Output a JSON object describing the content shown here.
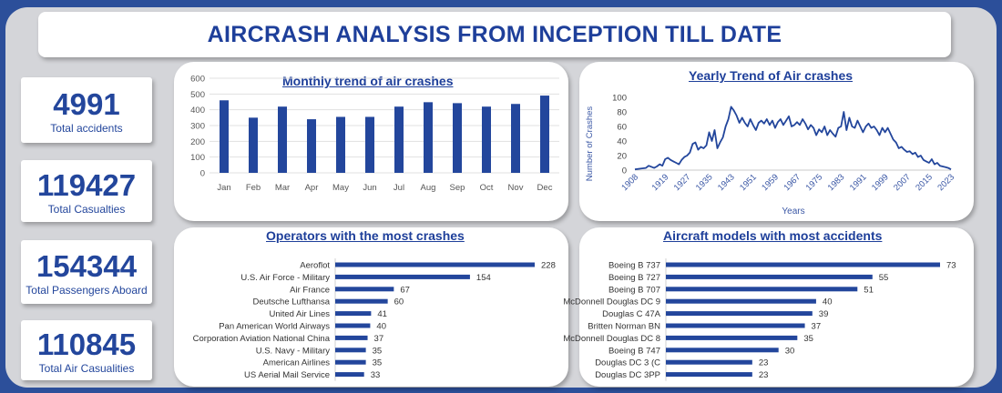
{
  "title": "AIRCRASH ANALYSIS FROM INCEPTION TILL DATE",
  "kpis": [
    {
      "value": "4991",
      "label": "Total accidents"
    },
    {
      "value": "119427",
      "label": "Total Casualties"
    },
    {
      "value": "154344",
      "label": "Total Passengers Aboard"
    },
    {
      "value": "110845",
      "label": "Total Air Casualities"
    }
  ],
  "colors": {
    "bar": "#23469c",
    "line": "#23469c",
    "grid": "#e1e1e1",
    "axis_text": "#3a57a5"
  },
  "chart_data": [
    {
      "id": "monthly",
      "type": "bar",
      "title": "Monthly trend of air crashes",
      "categories": [
        "Jan",
        "Feb",
        "Mar",
        "Apr",
        "May",
        "Jun",
        "Jul",
        "Aug",
        "Sep",
        "Oct",
        "Nov",
        "Dec"
      ],
      "values": [
        460,
        350,
        420,
        340,
        355,
        355,
        420,
        448,
        442,
        420,
        437,
        490
      ],
      "ylim": [
        0,
        600
      ],
      "yticks": [
        0,
        100,
        200,
        300,
        400,
        500,
        600
      ],
      "xlabel": "",
      "ylabel": "",
      "grid": true
    },
    {
      "id": "yearly",
      "type": "line",
      "title": "Yearly Trend of Air crashes",
      "xlabel": "Years",
      "ylabel": "Number of Crashes",
      "ylim": [
        0,
        100
      ],
      "yticks": [
        0,
        20,
        40,
        60,
        80,
        100
      ],
      "xlim": [
        1908,
        2023
      ],
      "xticks": [
        1908,
        1919,
        1927,
        1935,
        1943,
        1951,
        1959,
        1967,
        1975,
        1983,
        1991,
        1999,
        2007,
        2015,
        2023
      ],
      "x": [
        1908,
        1910,
        1912,
        1913,
        1915,
        1916,
        1917,
        1918,
        1919,
        1920,
        1921,
        1922,
        1923,
        1924,
        1925,
        1926,
        1927,
        1928,
        1929,
        1930,
        1931,
        1932,
        1933,
        1934,
        1935,
        1936,
        1937,
        1938,
        1939,
        1940,
        1941,
        1942,
        1943,
        1944,
        1945,
        1946,
        1947,
        1948,
        1949,
        1950,
        1951,
        1952,
        1953,
        1954,
        1955,
        1956,
        1957,
        1958,
        1959,
        1960,
        1961,
        1962,
        1963,
        1964,
        1965,
        1966,
        1967,
        1968,
        1969,
        1970,
        1971,
        1972,
        1973,
        1974,
        1975,
        1976,
        1977,
        1978,
        1979,
        1980,
        1981,
        1982,
        1983,
        1984,
        1985,
        1986,
        1987,
        1988,
        1989,
        1990,
        1991,
        1992,
        1993,
        1994,
        1995,
        1996,
        1997,
        1998,
        1999,
        2000,
        2001,
        2002,
        2003,
        2004,
        2005,
        2006,
        2007,
        2008,
        2009,
        2010,
        2011,
        2012,
        2013,
        2014,
        2015,
        2016,
        2017,
        2018,
        2019,
        2020,
        2021,
        2022,
        2023
      ],
      "y": [
        1,
        2,
        3,
        6,
        3,
        5,
        8,
        6,
        15,
        17,
        14,
        12,
        10,
        8,
        14,
        18,
        20,
        24,
        36,
        38,
        28,
        32,
        30,
        34,
        52,
        40,
        55,
        30,
        38,
        45,
        60,
        70,
        87,
        82,
        75,
        65,
        72,
        65,
        60,
        70,
        62,
        55,
        65,
        68,
        64,
        70,
        62,
        68,
        58,
        66,
        70,
        62,
        68,
        74,
        60,
        62,
        66,
        62,
        70,
        64,
        56,
        62,
        58,
        48,
        56,
        52,
        60,
        48,
        55,
        50,
        46,
        58,
        60,
        80,
        55,
        72,
        60,
        58,
        68,
        60,
        52,
        60,
        64,
        58,
        60,
        55,
        48,
        58,
        52,
        58,
        50,
        42,
        38,
        30,
        32,
        28,
        25,
        26,
        22,
        24,
        18,
        20,
        14,
        12,
        10,
        15,
        8,
        10,
        6,
        5,
        4,
        3,
        1
      ]
    },
    {
      "id": "operators",
      "type": "bar",
      "orientation": "horizontal",
      "title": "Operators with the most crashes",
      "categories": [
        "Aeroflot",
        "U.S. Air Force - Military",
        "Air France",
        "Deutsche Lufthansa",
        "United Air Lines",
        "Pan American World Airways",
        "Corporation Aviation National China",
        "U.S. Navy - Military",
        "American Airlines",
        "US Aerial Mail Service"
      ],
      "values": [
        228,
        154,
        67,
        60,
        41,
        40,
        37,
        35,
        35,
        33
      ],
      "xmax": 228
    },
    {
      "id": "models",
      "type": "bar",
      "orientation": "horizontal",
      "title": "Aircraft models with most accidents",
      "categories": [
        "Boeing B 737",
        "Boeing B 727",
        "Boeing B 707",
        "McDonnell Douglas DC 9",
        "Douglas C 47A",
        "Britten  Norman BN",
        "McDonnell Douglas DC 8",
        "Boeing B 747",
        "Douglas DC 3 (C",
        "Douglas DC 3PP"
      ],
      "values": [
        73,
        55,
        51,
        40,
        39,
        37,
        35,
        30,
        23,
        23
      ],
      "xmax": 73
    }
  ]
}
